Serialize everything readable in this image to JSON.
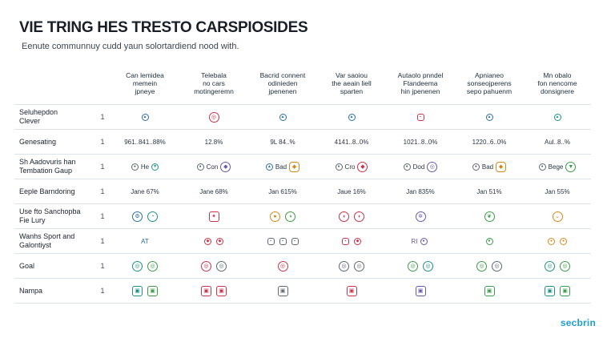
{
  "header": {
    "title": "VIE TRING HES TRESTO CARSPIOSIDES",
    "subtitle": "Eenute communnuy cudd yaun solortardiend nood with."
  },
  "columns": [
    "Can lemidea\nmemein\njpneye",
    "Telebala\nno cars\nmotingeremn",
    "Bacrid connent\nodinieden\njpenenen",
    "Var saoiou\nthe aeain liell\nsparten",
    "Autaolo pnndel\nFtandeema\nhin jpenenen",
    "Apnianeo\nsonseojperens\nsepo pahuenm",
    "Mn obalo\nfon nencome\ndonsignere"
  ],
  "rows": [
    {
      "label": "Seluhepdon\nClever",
      "index": "1"
    },
    {
      "label": "Genesating",
      "index": "1",
      "cells": [
        "961..841..88%",
        "12.8%",
        "9L 84..%",
        "4141..8..0%",
        "1021..8..0%",
        "1220..6..0%",
        "Aul..8..%"
      ]
    },
    {
      "label": "Sh Aadovuris han\nTembation Gaup",
      "index": "1",
      "cells": [
        "He",
        "Con",
        "Bad",
        "Cro",
        "Dod",
        "Bad",
        "Bege"
      ]
    },
    {
      "label": "Eeple Barndoring",
      "index": "1",
      "cells": [
        "Jane 67%",
        "Jane 68%",
        "Jan 615%",
        "Jaue 16%",
        "Jan 835%",
        "Jan 51%",
        "Jan 55%"
      ]
    },
    {
      "label": "Use fto Sanchopba\nFie Lury",
      "index": "1"
    },
    {
      "label": "Wanhs Sport and\nGalontiyst",
      "index": "1",
      "cells": [
        "AT",
        "",
        "",
        "",
        "RI",
        "",
        ""
      ]
    },
    {
      "label": "Goal",
      "index": "1"
    },
    {
      "label": "Nampa",
      "index": "1"
    }
  ],
  "icons": {
    "row0": [
      "shield-icon",
      "target-icon",
      "shield-icon",
      "shield-icon",
      "chart-icon",
      "shield-icon",
      "shield-icon"
    ],
    "row4": [
      "settings-icon",
      "badge-icon",
      "award-icon",
      "pin-icon",
      "globe-icon",
      "leaf-icon",
      "chevron-icon"
    ]
  },
  "colors": {
    "accent": "#1e9ed4",
    "red": "#c8334a",
    "blue": "#2b6ea3",
    "green": "#3d9a4a",
    "orange": "#d28a1b"
  },
  "brand": {
    "logo": "secbrin"
  }
}
